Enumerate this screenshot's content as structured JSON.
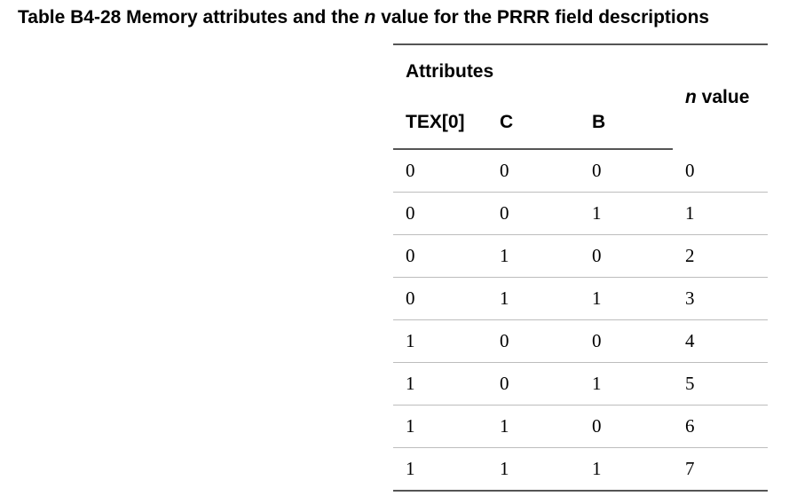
{
  "caption": {
    "prefix": "Table B4-28 Memory attributes and the ",
    "var": "n",
    "suffix": " value for the PRRR field descriptions"
  },
  "table": {
    "group_header": "Attributes",
    "n_value_header": {
      "var": "n",
      "suffix": " value"
    },
    "columns": [
      "TEX[0]",
      "C",
      "B"
    ],
    "rows": [
      [
        "0",
        "0",
        "0",
        "0"
      ],
      [
        "0",
        "0",
        "1",
        "1"
      ],
      [
        "0",
        "1",
        "0",
        "2"
      ],
      [
        "0",
        "1",
        "1",
        "3"
      ],
      [
        "1",
        "0",
        "0",
        "4"
      ],
      [
        "1",
        "0",
        "1",
        "5"
      ],
      [
        "1",
        "1",
        "0",
        "6"
      ],
      [
        "1",
        "1",
        "1",
        "7"
      ]
    ]
  }
}
